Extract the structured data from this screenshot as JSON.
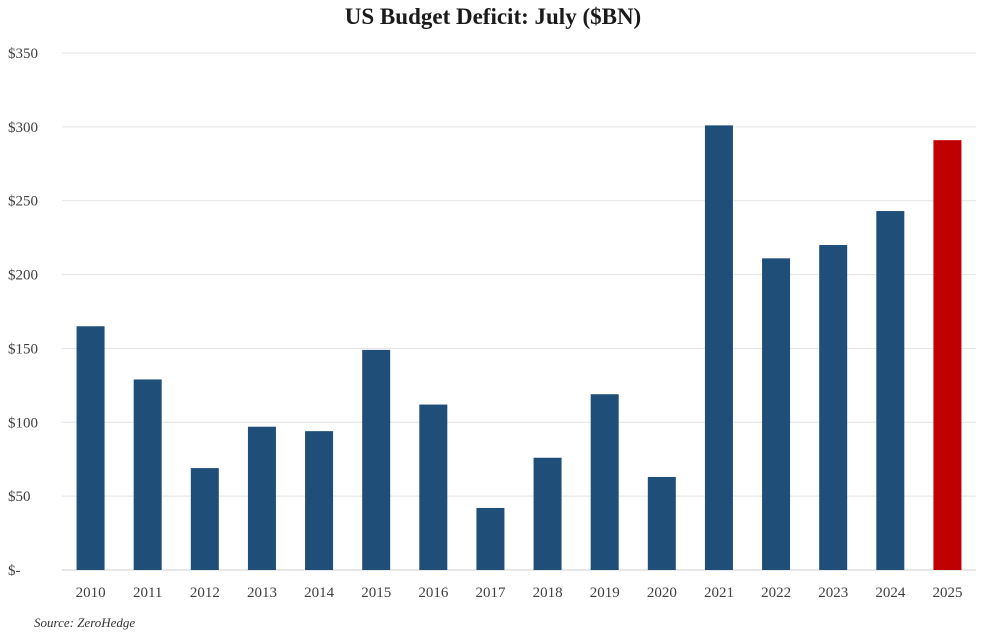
{
  "chart_data": {
    "type": "bar",
    "title": "US Budget Deficit: July ($BN)",
    "categories": [
      "2010",
      "2011",
      "2012",
      "2013",
      "2014",
      "2015",
      "2016",
      "2017",
      "2018",
      "2019",
      "2020",
      "2021",
      "2022",
      "2023",
      "2024",
      "2025"
    ],
    "values": [
      165,
      129,
      69,
      97,
      94,
      149,
      112,
      42,
      76,
      119,
      63,
      301,
      211,
      220,
      243,
      291
    ],
    "bar_colors": [
      "#1f4e79",
      "#1f4e79",
      "#1f4e79",
      "#1f4e79",
      "#1f4e79",
      "#1f4e79",
      "#1f4e79",
      "#1f4e79",
      "#1f4e79",
      "#1f4e79",
      "#1f4e79",
      "#1f4e79",
      "#1f4e79",
      "#1f4e79",
      "#1f4e79",
      "#c00000"
    ],
    "ylim": [
      0,
      350
    ],
    "yticks": [
      0,
      50,
      100,
      150,
      200,
      250,
      300,
      350
    ],
    "ytick_labels": [
      "$-",
      "$50",
      "$100",
      "$150",
      "$200",
      "$250",
      "$300",
      "$350"
    ],
    "xlabel": "",
    "ylabel": "",
    "grid": true,
    "legend": false,
    "source": "Source: ZeroHedge"
  }
}
